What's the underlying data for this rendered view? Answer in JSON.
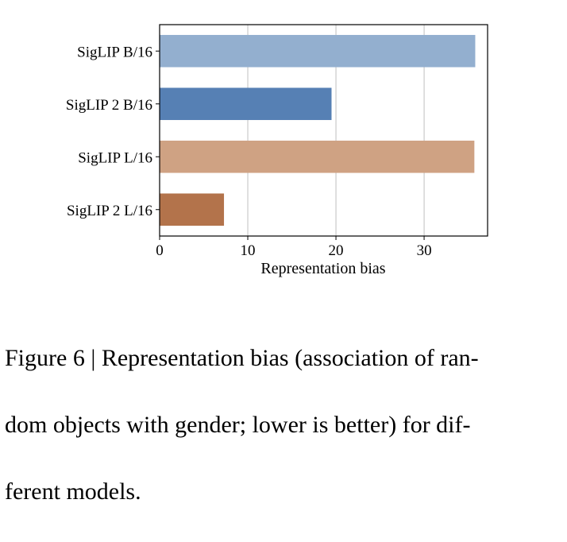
{
  "chart_data": {
    "type": "bar",
    "orientation": "horizontal",
    "categories": [
      "SigLIP B/16",
      "SigLIP 2 B/16",
      "SigLIP L/16",
      "SigLIP 2 L/16"
    ],
    "values": [
      35.8,
      19.5,
      35.7,
      7.3
    ],
    "colors": [
      "#93afcf",
      "#5680b4",
      "#cfa283",
      "#b3734b"
    ],
    "xlabel": "Representation bias",
    "ylabel": "",
    "xlim": [
      0,
      37.2
    ],
    "xticks": [
      0,
      10,
      20,
      30
    ],
    "grid": "vertical",
    "legend": "none"
  },
  "caption": {
    "lines": [
      "Figure 6 | Representation bias (association of ran-",
      "dom objects with gender; lower is better) for dif-",
      "ferent models."
    ]
  }
}
